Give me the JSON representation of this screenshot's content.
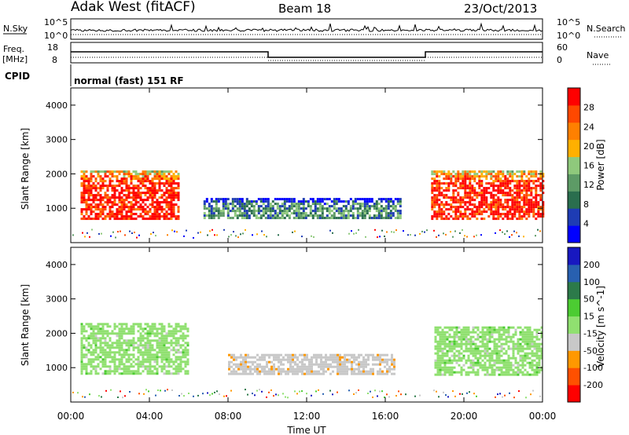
{
  "header": {
    "station": "Adak West (fitACF)",
    "beam": "Beam 18",
    "date": "23/Oct/2013"
  },
  "panels": {
    "nsky": {
      "label": "N.Sky",
      "ticks": [
        "10^5",
        "10^0"
      ],
      "right_label": "N.Search",
      "right_ticks": [
        "10^5",
        "10^0"
      ]
    },
    "freq": {
      "label_line1": "Freq.",
      "label_line2": "[MHz]",
      "ticks": [
        "18",
        "8"
      ],
      "right_label": "Nave",
      "right_ticks": [
        "60",
        "0"
      ]
    },
    "cpid": {
      "label": "CPID",
      "text": "normal (fast) 151 RF"
    }
  },
  "colors": {
    "power": [
      "#0000ff",
      "#1e3cb4",
      "#2a6e4e",
      "#5d9b66",
      "#8fc97c",
      "#ffb000",
      "#ff8000",
      "#ff4800",
      "#ff0000"
    ],
    "velocity": [
      "#ff0000",
      "#ff5000",
      "#ff9800",
      "#c8c8c8",
      "#90e070",
      "#4ccc32",
      "#2c7a4a",
      "#2860b0",
      "#1818c0"
    ]
  },
  "chart_data": [
    {
      "type": "heatmap",
      "title": "",
      "xlabel": "",
      "ylabel": "Slant Range [km]",
      "x_ticks": [
        "00:00",
        "04:00",
        "08:00",
        "12:00",
        "16:00",
        "20:00",
        "00:00"
      ],
      "y_ticks": [
        "1000",
        "2000",
        "3000",
        "4000"
      ],
      "ylim": [
        0,
        4500
      ],
      "colorbar": {
        "label": "Power [dB]",
        "ticks": [
          "4",
          "8",
          "12",
          "16",
          "20",
          "24",
          "28"
        ],
        "range": [
          0,
          30
        ]
      },
      "regions": [
        {
          "start": "00:30",
          "end": "05:30",
          "range_min": 700,
          "range_max": 2100,
          "value": 28
        },
        {
          "start": "06:45",
          "end": "16:45",
          "range_min": 700,
          "range_max": 1300,
          "value": 10
        },
        {
          "start": "18:20",
          "end": "24:00",
          "range_min": 700,
          "range_max": 2100,
          "value": 28
        }
      ]
    },
    {
      "type": "heatmap",
      "title": "",
      "xlabel": "Time UT",
      "ylabel": "Slant Range [km]",
      "x_ticks": [
        "00:00",
        "04:00",
        "08:00",
        "12:00",
        "16:00",
        "20:00",
        "00:00"
      ],
      "y_ticks": [
        "1000",
        "2000",
        "3000",
        "4000"
      ],
      "ylim": [
        0,
        4500
      ],
      "colorbar": {
        "label": "Velocity [m s^-1]",
        "ticks": [
          "-200",
          "-100",
          "-50",
          "-15",
          "15",
          "50",
          "100",
          "200"
        ],
        "range": [
          -250,
          250
        ]
      },
      "regions": [
        {
          "start": "00:30",
          "end": "06:00",
          "range_min": 800,
          "range_max": 2300,
          "value": 0
        },
        {
          "start": "08:00",
          "end": "16:30",
          "range_min": 800,
          "range_max": 1400,
          "value": -60
        },
        {
          "start": "18:30",
          "end": "24:00",
          "range_min": 800,
          "range_max": 2200,
          "value": 0
        }
      ]
    }
  ]
}
